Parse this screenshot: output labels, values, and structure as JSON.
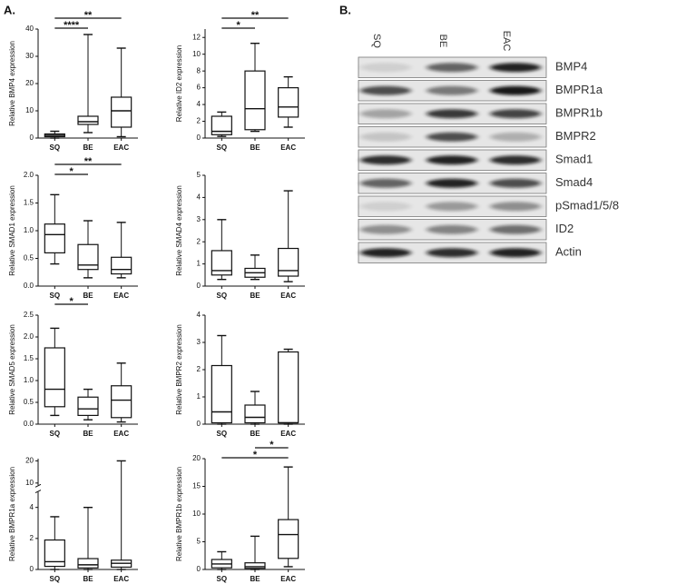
{
  "panel_labels": [
    "A.",
    "B."
  ],
  "blot": {
    "lanes": [
      "SQ",
      "BE",
      "EAC"
    ],
    "proteins": [
      "BMP4",
      "BMPR1a",
      "BMPR1b",
      "BMPR2",
      "Smad1",
      "Smad4",
      "pSmad1/5/8",
      "ID2",
      "Actin"
    ]
  },
  "chart_data": [
    {
      "type": "box",
      "y_label": "Relative BMP4 expression",
      "categories": [
        "SQ",
        "BE",
        "EAC"
      ],
      "min": [
        0,
        2,
        0.5
      ],
      "q1": [
        0.5,
        5,
        4
      ],
      "median": [
        1,
        6,
        10
      ],
      "q3": [
        1.5,
        8,
        15
      ],
      "max": [
        2.5,
        38,
        33
      ],
      "ylim": [
        0,
        40
      ],
      "yticks": [
        0,
        10,
        20,
        30,
        40
      ],
      "annotations": [
        {
          "label": "**",
          "from": 0,
          "to": 2
        },
        {
          "label": "****",
          "from": 0,
          "to": 1
        }
      ]
    },
    {
      "type": "box",
      "y_label": "Relative ID2 expression",
      "categories": [
        "SQ",
        "BE",
        "EAC"
      ],
      "min": [
        0.2,
        0.8,
        1.3
      ],
      "q1": [
        0.4,
        1,
        2.5
      ],
      "median": [
        0.8,
        3.5,
        3.7
      ],
      "q3": [
        2.6,
        8,
        6
      ],
      "max": [
        3.1,
        11.3,
        7.3
      ],
      "ylim": [
        0,
        13
      ],
      "yticks": [
        0,
        2,
        4,
        6,
        8,
        10,
        12
      ],
      "annotations": [
        {
          "label": "**",
          "from": 0,
          "to": 2
        },
        {
          "label": "*",
          "from": 0,
          "to": 1
        }
      ]
    },
    {
      "type": "box",
      "y_label": "Relative SMAD1 expression",
      "categories": [
        "SQ",
        "BE",
        "EAC"
      ],
      "min": [
        0.4,
        0.15,
        0.15
      ],
      "q1": [
        0.6,
        0.3,
        0.22
      ],
      "median": [
        0.93,
        0.38,
        0.3
      ],
      "q3": [
        1.12,
        0.75,
        0.52
      ],
      "max": [
        1.65,
        1.18,
        1.15
      ],
      "ylim": [
        0,
        2
      ],
      "yticks": [
        {
          "value": 0,
          "label": "0.0"
        },
        0.5,
        {
          "value": 1,
          "label": "1.0"
        },
        1.5,
        {
          "value": 2,
          "label": "2.0"
        }
      ],
      "annotations": [
        {
          "label": "**",
          "from": 0,
          "to": 2
        },
        {
          "label": "*",
          "from": 0,
          "to": 1
        }
      ]
    },
    {
      "type": "box",
      "y_label": "Relative SMAD4 expression",
      "categories": [
        "SQ",
        "BE",
        "EAC"
      ],
      "min": [
        0.3,
        0.3,
        0.2
      ],
      "q1": [
        0.5,
        0.4,
        0.45
      ],
      "median": [
        0.7,
        0.6,
        0.7
      ],
      "q3": [
        1.6,
        0.8,
        1.7
      ],
      "max": [
        3.0,
        1.4,
        4.3
      ],
      "ylim": [
        0,
        5
      ],
      "yticks": [
        0,
        1,
        2,
        3,
        4,
        5
      ],
      "annotations": []
    },
    {
      "type": "box",
      "y_label": "Relative SMAD5 expression",
      "categories": [
        "SQ",
        "BE",
        "EAC"
      ],
      "min": [
        0.2,
        0.1,
        0.05
      ],
      "q1": [
        0.4,
        0.2,
        0.15
      ],
      "median": [
        0.8,
        0.35,
        0.55
      ],
      "q3": [
        1.75,
        0.62,
        0.88
      ],
      "max": [
        2.2,
        0.8,
        1.4
      ],
      "ylim": [
        0,
        2.5
      ],
      "yticks": [
        {
          "value": 0,
          "label": "0.0"
        },
        0.5,
        {
          "value": 1,
          "label": "1.0"
        },
        1.5,
        {
          "value": 2,
          "label": "2.0"
        },
        2.5
      ],
      "annotations": [
        {
          "label": "*",
          "from": 0,
          "to": 1
        }
      ]
    },
    {
      "type": "box",
      "y_label": "Relative BMPR2 expression",
      "categories": [
        "SQ",
        "BE",
        "EAC"
      ],
      "min": [
        0,
        0,
        0
      ],
      "q1": [
        0.05,
        0.05,
        0.05
      ],
      "median": [
        0.45,
        0.25,
        0.05
      ],
      "q3": [
        2.15,
        0.7,
        2.65
      ],
      "max": [
        3.25,
        1.2,
        2.75
      ],
      "ylim": [
        0,
        4
      ],
      "yticks": [
        0,
        1,
        2,
        3,
        4
      ],
      "annotations": []
    },
    {
      "type": "box",
      "y_label": "Relative BMPR1a expression",
      "categories": [
        "SQ",
        "BE",
        "EAC"
      ],
      "min": [
        0,
        0,
        0
      ],
      "q1": [
        0.2,
        0.1,
        0.15
      ],
      "median": [
        0.5,
        0.3,
        0.4
      ],
      "q3": [
        1.9,
        0.7,
        0.6
      ],
      "max": [
        3.4,
        4.0,
        20
      ],
      "ylim": [
        0,
        21
      ],
      "ybreak": [
        5,
        9
      ],
      "yticks": [
        0,
        2,
        4,
        10,
        20
      ],
      "annotations": []
    },
    {
      "type": "box",
      "y_label": "Relative BMPR1b expression",
      "categories": [
        "SQ",
        "BE",
        "EAC"
      ],
      "min": [
        0,
        0,
        0.5
      ],
      "q1": [
        0.3,
        0.2,
        2
      ],
      "median": [
        1,
        0.5,
        6.3
      ],
      "q3": [
        1.8,
        1.2,
        9
      ],
      "max": [
        3.2,
        6,
        18.5
      ],
      "ylim": [
        0,
        20
      ],
      "yticks": [
        0,
        5,
        10,
        15,
        20
      ],
      "annotations": [
        {
          "label": "*",
          "from": 1,
          "to": 2
        },
        {
          "label": "*",
          "from": 0,
          "to": 2
        }
      ]
    }
  ]
}
